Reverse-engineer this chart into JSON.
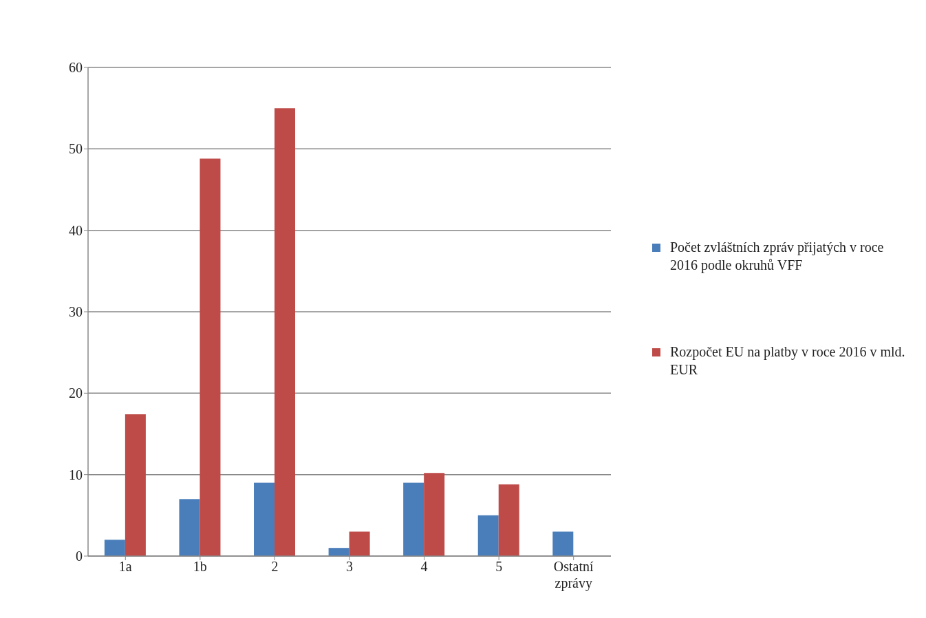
{
  "chart_data": {
    "type": "bar",
    "categories": [
      "1a",
      "1b",
      "2",
      "3",
      "4",
      "5",
      "Ostatní zprávy"
    ],
    "series": [
      {
        "name": "Počet zvláštních zpráv přijatých v roce 2016 podle okruhů VFF",
        "color": "#4a7ebb",
        "values": [
          2,
          7,
          9,
          1,
          9,
          5,
          3
        ]
      },
      {
        "name": "Rozpočet EU na platby v roce 2016 v mld. EUR",
        "color": "#be4b48",
        "values": [
          17.4,
          48.8,
          55.0,
          3.0,
          10.2,
          8.8,
          null
        ]
      }
    ],
    "ylim": [
      0,
      60
    ],
    "yticks": [
      0,
      10,
      20,
      30,
      40,
      50,
      60
    ],
    "grid": "y",
    "legend": "right"
  }
}
